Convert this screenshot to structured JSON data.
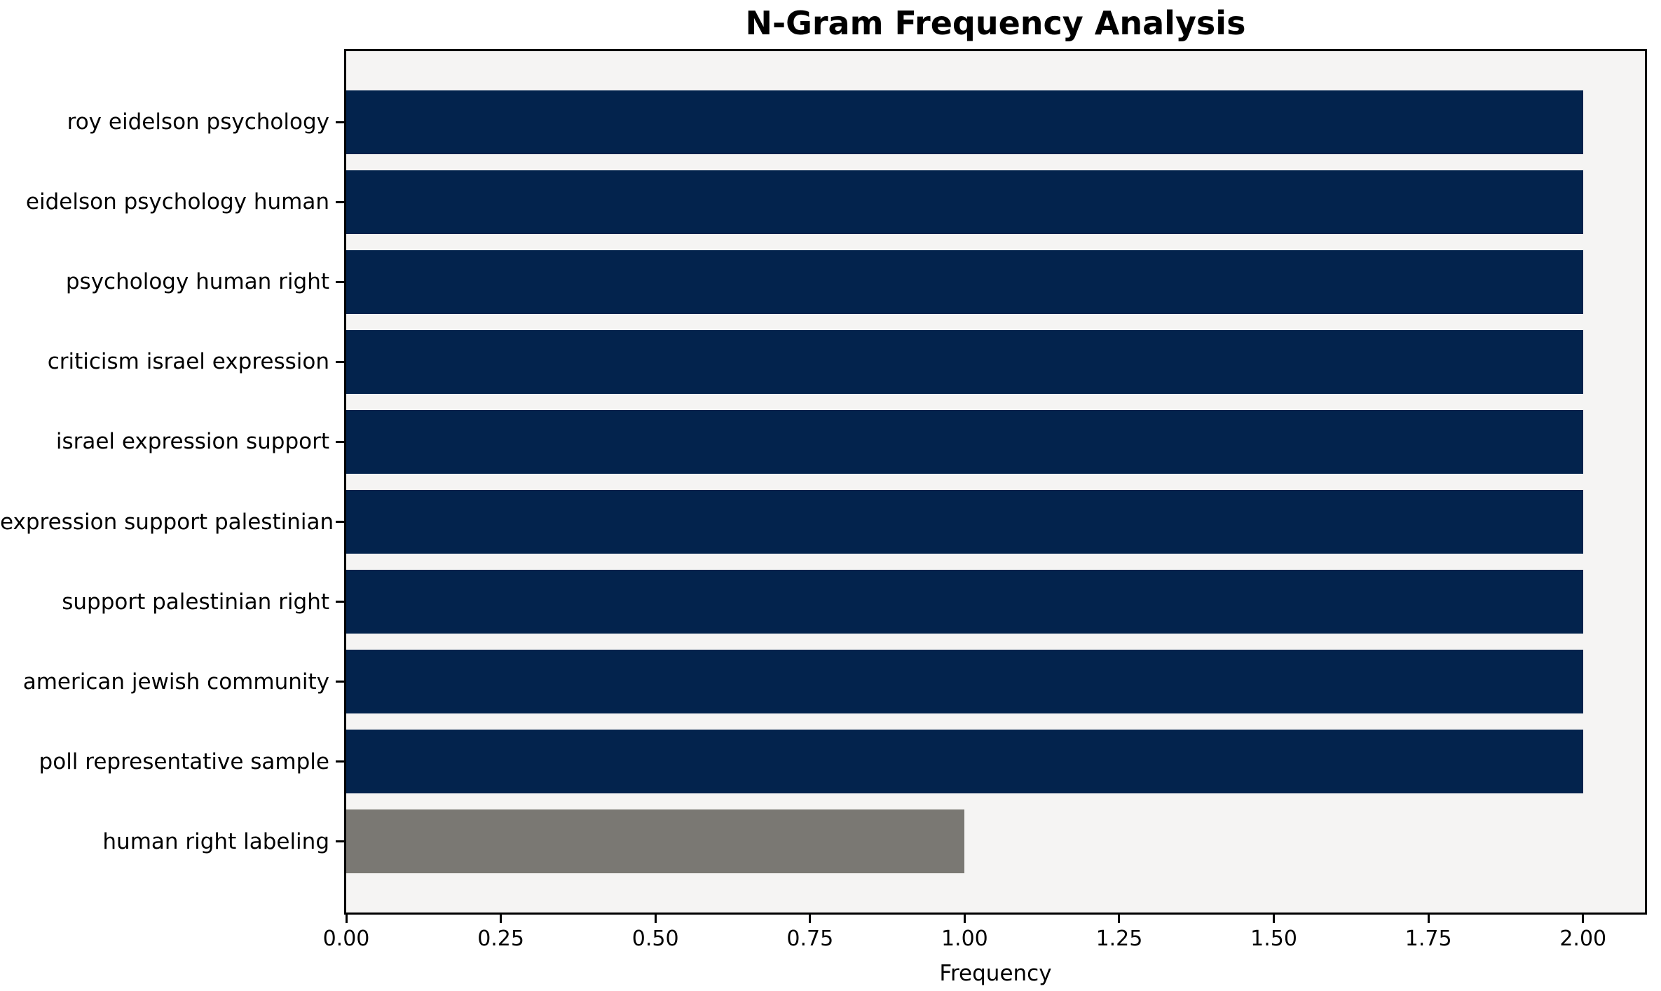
{
  "chart_data": {
    "type": "bar",
    "orientation": "horizontal",
    "title": "N-Gram Frequency Analysis",
    "xlabel": "Frequency",
    "ylabel": "",
    "categories": [
      "roy eidelson psychology",
      "eidelson psychology human",
      "psychology human right",
      "criticism israel expression",
      "israel expression support",
      "expression support palestinian",
      "support palestinian right",
      "american jewish community",
      "poll representative sample",
      "human right labeling"
    ],
    "values": [
      2,
      2,
      2,
      2,
      2,
      2,
      2,
      2,
      2,
      1
    ],
    "bar_colors": [
      "#03234d",
      "#03234d",
      "#03234d",
      "#03234d",
      "#03234d",
      "#03234d",
      "#03234d",
      "#03234d",
      "#03234d",
      "#7a7873"
    ],
    "xlim": [
      0,
      2.1
    ],
    "xticks": [
      0,
      0.25,
      0.5,
      0.75,
      1.0,
      1.25,
      1.5,
      1.75,
      2.0
    ],
    "xtick_labels": [
      "0.00",
      "0.25",
      "0.50",
      "0.75",
      "1.00",
      "1.25",
      "1.50",
      "1.75",
      "2.00"
    ],
    "grid": false,
    "legend": null,
    "colors": {
      "bar_primary": "#03234d",
      "bar_secondary": "#7a7873",
      "plot_background": "#f5f4f3",
      "figure_background": "#ffffff",
      "spine": "#000000",
      "text": "#000000"
    }
  }
}
